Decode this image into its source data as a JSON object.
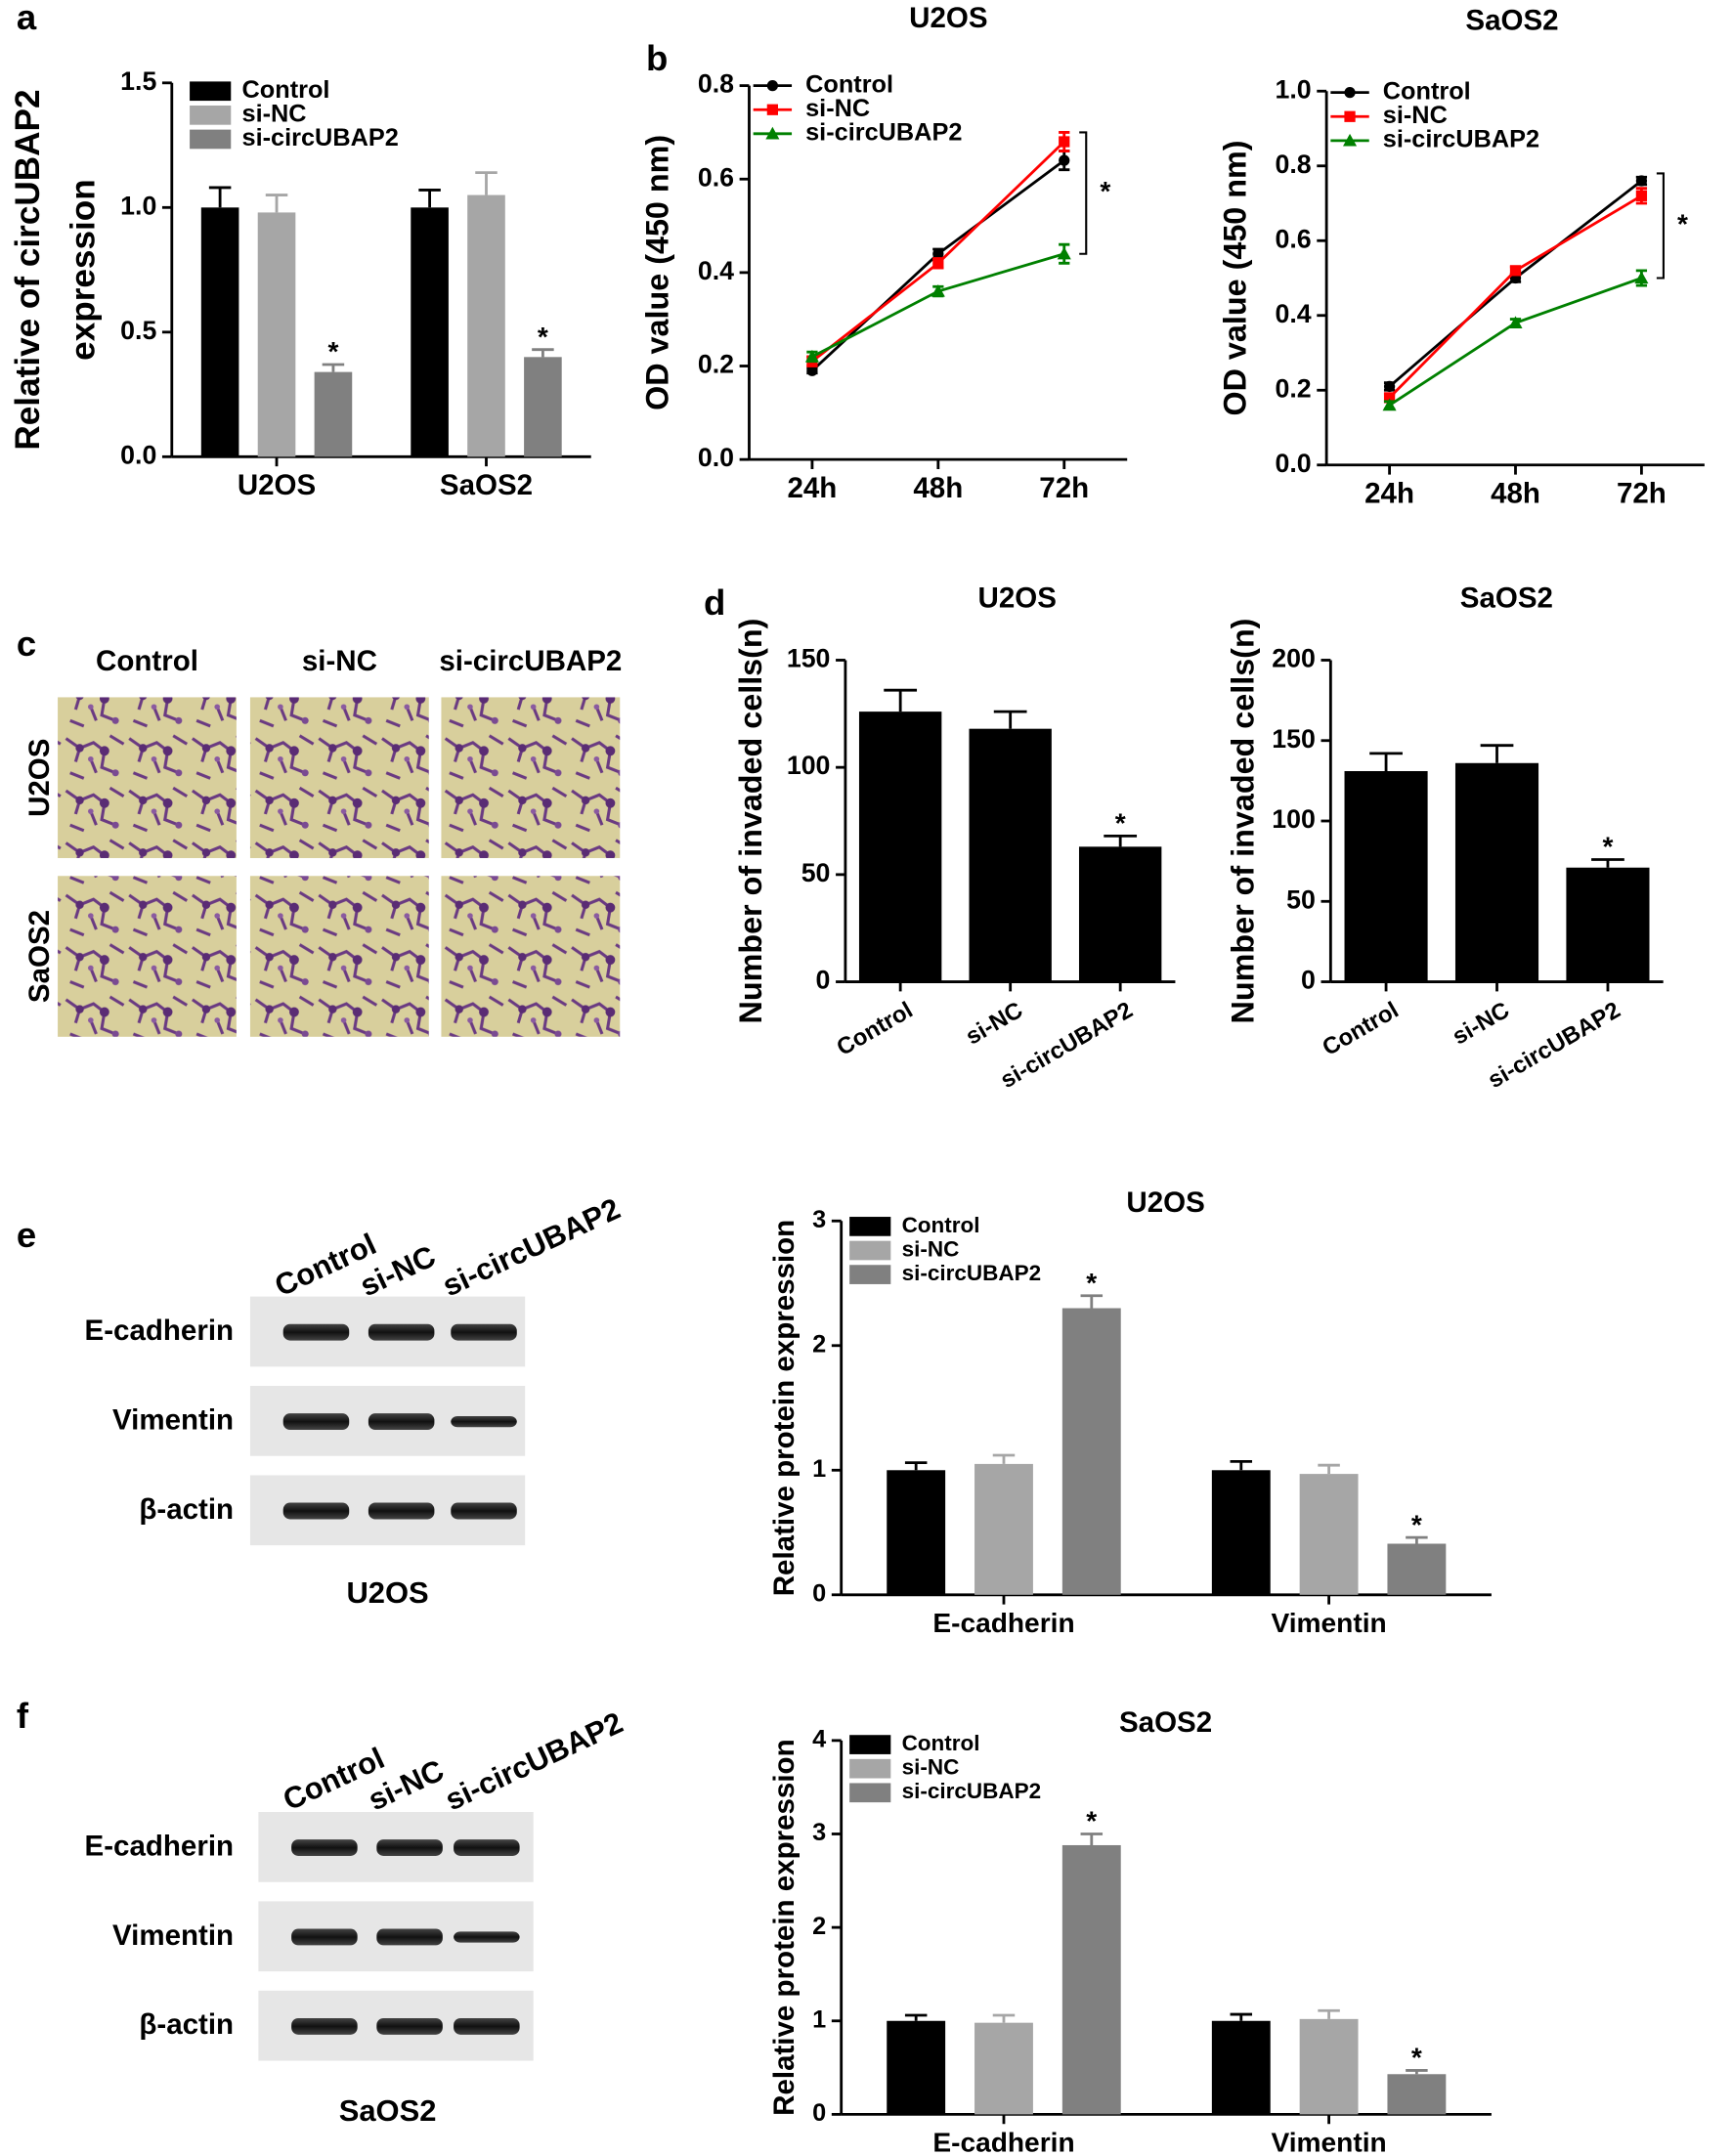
{
  "chart_data": [
    {
      "type": "bar",
      "panel": "a",
      "ylabel": [
        "Relative of circUBAP2",
        "expression"
      ],
      "categories": [
        "U2OS",
        "SaOS2"
      ],
      "series": [
        {
          "name": "Control",
          "color": "#000000",
          "values": [
            1.0,
            1.0
          ],
          "errors": [
            0.08,
            0.07
          ]
        },
        {
          "name": "si-NC",
          "color": "#a6a6a6",
          "values": [
            0.98,
            1.05
          ],
          "errors": [
            0.07,
            0.09
          ]
        },
        {
          "name": "si-circUBAP2",
          "color": "#808080",
          "values": [
            0.34,
            0.4
          ],
          "errors": [
            0.03,
            0.03
          ],
          "marks": [
            "*",
            "*"
          ]
        }
      ],
      "ylim": [
        0,
        1.5
      ],
      "yticks": [
        {
          "value": 0,
          "label": "0.0"
        },
        0.5,
        {
          "value": 1,
          "label": "1.0"
        },
        1.5
      ]
    },
    {
      "type": "line",
      "panel": "b",
      "title": "U2OS",
      "ylabel": "OD value (450 nm)",
      "categories": [
        "24h",
        "48h",
        "72h"
      ],
      "series": [
        {
          "name": "Control",
          "color": "#000000",
          "marker": "circle",
          "values": [
            0.19,
            0.44,
            0.64
          ],
          "errors": [
            0.005,
            0.01,
            0.02
          ]
        },
        {
          "name": "si-NC",
          "color": "#ff0000",
          "marker": "square",
          "values": [
            0.21,
            0.42,
            0.68
          ],
          "errors": [
            0.01,
            0.01,
            0.02
          ]
        },
        {
          "name": "si-circUBAP2",
          "color": "#008000",
          "marker": "triangle",
          "values": [
            0.22,
            0.36,
            0.44
          ],
          "errors": [
            0.01,
            0.01,
            0.02
          ]
        }
      ],
      "annotation": "*",
      "ylim": [
        0,
        0.8
      ],
      "yticks": [
        {
          "value": 0,
          "label": "0.0"
        },
        0.2,
        0.4,
        0.6,
        0.8
      ]
    },
    {
      "type": "line",
      "title": "SaOS2",
      "ylabel": "OD value (450 nm)",
      "categories": [
        "24h",
        "48h",
        "72h"
      ],
      "series": [
        {
          "name": "Control",
          "color": "#000000",
          "marker": "circle",
          "values": [
            0.21,
            0.5,
            0.76
          ],
          "errors": [
            0.01,
            0.01,
            0.01
          ]
        },
        {
          "name": "si-NC",
          "color": "#ff0000",
          "marker": "square",
          "values": [
            0.18,
            0.52,
            0.72
          ],
          "errors": [
            0.01,
            0.01,
            0.02
          ]
        },
        {
          "name": "si-circUBAP2",
          "color": "#008000",
          "marker": "triangle",
          "values": [
            0.16,
            0.38,
            0.5
          ],
          "errors": [
            0.01,
            0.01,
            0.02
          ]
        }
      ],
      "annotation": "*",
      "ylim": [
        0,
        1
      ],
      "yticks": [
        {
          "value": 0,
          "label": "0.0"
        },
        0.2,
        0.4,
        0.6,
        0.8,
        {
          "value": 1,
          "label": "1.0"
        }
      ]
    },
    {
      "type": "bar",
      "panel": "d",
      "title": "U2OS",
      "ylabel": "Number of invaded cells(n)",
      "categories": [
        "Control",
        "si-NC",
        "si-circUBAP2"
      ],
      "values": [
        126,
        118,
        63
      ],
      "errors": [
        10,
        8,
        5
      ],
      "marks": [
        null,
        null,
        "*"
      ],
      "color": "#000000",
      "ylim": [
        0,
        150
      ],
      "yticks": [
        0,
        50,
        100,
        150
      ]
    },
    {
      "type": "bar",
      "title": "SaOS2",
      "ylabel": "Number of invaded cells(n)",
      "categories": [
        "Control",
        "si-NC",
        "si-circUBAP2"
      ],
      "values": [
        131,
        136,
        71
      ],
      "errors": [
        11,
        11,
        5
      ],
      "marks": [
        null,
        null,
        "*"
      ],
      "color": "#000000",
      "ylim": [
        0,
        200
      ],
      "yticks": [
        0,
        50,
        100,
        150,
        200
      ]
    },
    {
      "type": "bar",
      "title": "U2OS",
      "ylabel": "Relative protein expression",
      "categories": [
        "E-cadherin",
        "Vimentin"
      ],
      "series": [
        {
          "name": "Control",
          "color": "#000000",
          "values": [
            1.0,
            1.0
          ],
          "errors": [
            0.06,
            0.07
          ]
        },
        {
          "name": "si-NC",
          "color": "#a6a6a6",
          "values": [
            1.05,
            0.97
          ],
          "errors": [
            0.07,
            0.07
          ]
        },
        {
          "name": "si-circUBAP2",
          "color": "#808080",
          "values": [
            2.3,
            0.41
          ],
          "errors": [
            0.1,
            0.05
          ],
          "marks": [
            "*",
            "*"
          ]
        }
      ],
      "ylim": [
        0,
        3
      ],
      "yticks": [
        0,
        1,
        2,
        3
      ]
    },
    {
      "type": "bar",
      "title": "SaOS2",
      "ylabel": "Relative protein expression",
      "categories": [
        "E-cadherin",
        "Vimentin"
      ],
      "series": [
        {
          "name": "Control",
          "color": "#000000",
          "values": [
            1.0,
            1.0
          ],
          "errors": [
            0.06,
            0.07
          ]
        },
        {
          "name": "si-NC",
          "color": "#a6a6a6",
          "values": [
            0.98,
            1.02
          ],
          "errors": [
            0.08,
            0.09
          ]
        },
        {
          "name": "si-circUBAP2",
          "color": "#808080",
          "values": [
            2.88,
            0.43
          ],
          "errors": [
            0.12,
            0.04
          ],
          "marks": [
            "*",
            "*"
          ]
        }
      ],
      "ylim": [
        0,
        4
      ],
      "yticks": [
        0,
        1,
        2,
        3,
        4
      ]
    }
  ],
  "invasion_images": {
    "panel": "c",
    "columns": [
      "Control",
      "si-NC",
      "si-circUBAP2"
    ],
    "rows": [
      "U2OS",
      "SaOS2"
    ]
  },
  "western_blots": [
    {
      "panel": "e",
      "lanes": [
        "Control",
        "si-NC",
        "si-circUBAP2"
      ],
      "rows": [
        "E-cadherin",
        "Vimentin",
        "β-actin"
      ],
      "cell_line": "U2OS"
    },
    {
      "panel": "f",
      "lanes": [
        "Control",
        "si-NC",
        "si-circUBAP2"
      ],
      "rows": [
        "E-cadherin",
        "Vimentin",
        "β-actin"
      ],
      "cell_line": "SaOS2"
    }
  ]
}
